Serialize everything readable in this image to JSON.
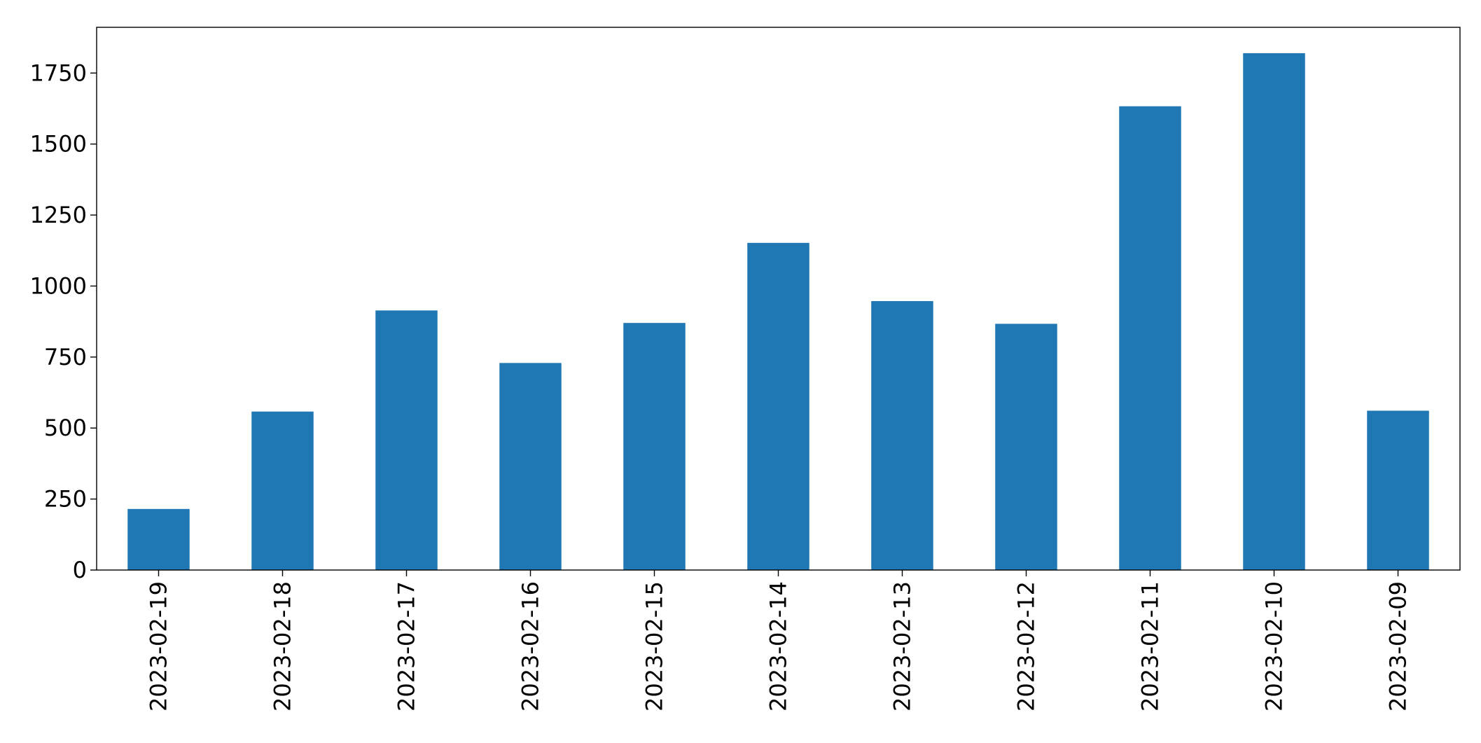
{
  "chart_data": {
    "type": "bar",
    "categories": [
      "2023-02-19",
      "2023-02-18",
      "2023-02-17",
      "2023-02-16",
      "2023-02-15",
      "2023-02-14",
      "2023-02-13",
      "2023-02-12",
      "2023-02-11",
      "2023-02-10",
      "2023-02-09"
    ],
    "values": [
      215,
      558,
      914,
      729,
      870,
      1152,
      947,
      867,
      1633,
      1820,
      561
    ],
    "color": "#1f77b4",
    "ylim": [
      0,
      1911
    ],
    "yticks": [
      0,
      250,
      500,
      750,
      1000,
      1250,
      1500,
      1750
    ],
    "grid": false
  }
}
